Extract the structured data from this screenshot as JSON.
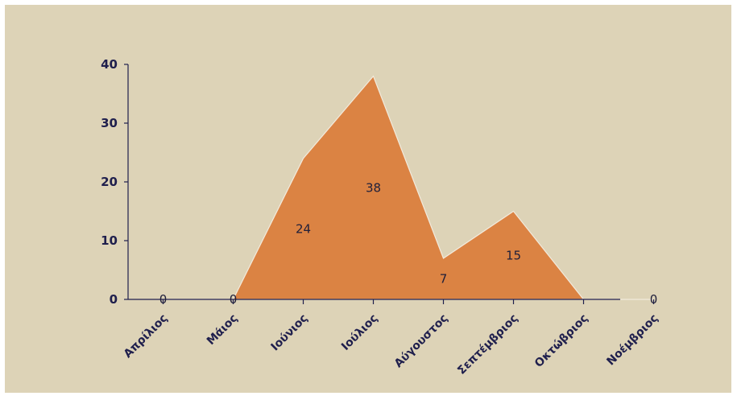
{
  "chart_data": {
    "type": "area",
    "title": "",
    "xlabel": "",
    "ylabel": "",
    "categories": [
      "Απρίλιος",
      "Μάιος",
      "Ιούνιος",
      "Ιούλιος",
      "Αύγουστος",
      "Σεπτέμβριος",
      "Οκτώβριος",
      "Νοέμβριος"
    ],
    "values": [
      0,
      0,
      24,
      38,
      7,
      15,
      0,
      0
    ],
    "data_labels": [
      "0",
      "0",
      "24",
      "38",
      "7",
      "15",
      "",
      "0"
    ],
    "y_ticks": [
      "0",
      "10",
      "20",
      "30",
      "40"
    ],
    "ylim": [
      0,
      40
    ],
    "grid": false,
    "legend": "none",
    "colors": {
      "background": "#ddd3b7",
      "fill": "#db8343",
      "axis": "#1f1f4d",
      "outline": "#f3eadc",
      "page": "#ffffff"
    }
  }
}
